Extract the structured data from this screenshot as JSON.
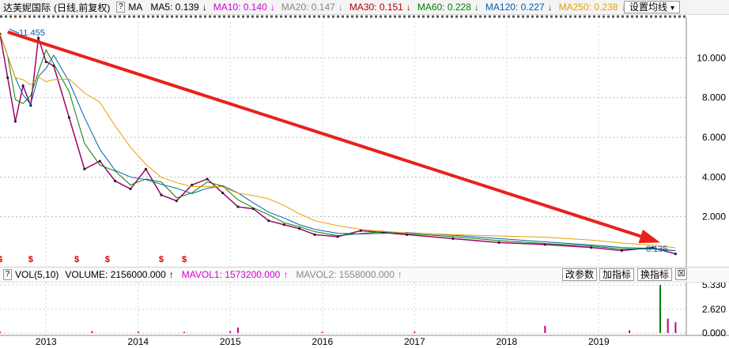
{
  "header": {
    "title": "达芙妮国际",
    "mode": "(日线,前复权)",
    "help": "?",
    "ma_label": "MA",
    "indicators": [
      {
        "text": "MA5: 0.139",
        "arrow": "↓",
        "color": "#000000"
      },
      {
        "text": "MA10: 0.140",
        "arrow": "↓",
        "color": "#d400d4"
      },
      {
        "text": "MA20: 0.147",
        "arrow": "↓",
        "color": "#888888"
      },
      {
        "text": "MA30: 0.151",
        "arrow": "↓",
        "color": "#b00000"
      },
      {
        "text": "MA60: 0.228",
        "arrow": "↓",
        "color": "#008000"
      },
      {
        "text": "MA120: 0.227",
        "arrow": "↓",
        "color": "#0060b0"
      },
      {
        "text": "MA250: 0.238",
        "arrow": "↓",
        "color": "#e8a000"
      }
    ],
    "settings_button": "设置均线"
  },
  "volume_bar": {
    "help": "?",
    "name": "VOL(5,10)",
    "volume": "VOLUME: 2156000.000",
    "mavol1": "MAVOL1: 1573200.000",
    "mavol2": "MAVOL2: 1558000.000",
    "arrow": "↑",
    "buttons": {
      "edit": "改参数",
      "add": "加指标",
      "switch": "换指标"
    },
    "close": "☒"
  },
  "chart_data": [
    {
      "type": "line",
      "title": "",
      "x": [
        "2012-07",
        "2012-08",
        "2012-09",
        "2012-10",
        "2012-11",
        "2012-12",
        "2013-01",
        "2013-02",
        "2013-04",
        "2013-06",
        "2013-08",
        "2013-10",
        "2013-12",
        "2014-02",
        "2014-04",
        "2014-06",
        "2014-08",
        "2014-10",
        "2014-12",
        "2015-02",
        "2015-04",
        "2015-06",
        "2015-08",
        "2015-10",
        "2015-12",
        "2016-03",
        "2016-06",
        "2016-09",
        "2016-12",
        "2017-06",
        "2017-12",
        "2018-06",
        "2018-12",
        "2019-04",
        "2019-08",
        "2019-11"
      ],
      "series": [
        {
          "name": "price",
          "values": [
            11.2,
            9.0,
            6.8,
            8.6,
            7.6,
            11.0,
            9.8,
            9.6,
            7.0,
            4.4,
            4.8,
            3.8,
            3.4,
            4.4,
            3.1,
            2.8,
            3.6,
            3.9,
            3.2,
            2.5,
            2.4,
            1.8,
            1.6,
            1.4,
            1.1,
            1.0,
            1.3,
            1.2,
            1.1,
            0.9,
            0.7,
            0.6,
            0.45,
            0.3,
            0.45,
            0.13
          ]
        }
      ],
      "trend_arrow": {
        "from": {
          "x": "2012-08",
          "y": 11.3
        },
        "to": {
          "x": "2019-09",
          "y": 0.7
        },
        "color": "#e8221b"
      },
      "high_label": "11.455",
      "low_label": "0.135",
      "ylim": [
        0,
        11.8
      ],
      "yticks": [
        "2.000",
        "4.000",
        "6.000",
        "8.000",
        "10.000"
      ],
      "xticks": [
        "2013",
        "2014",
        "2015",
        "2016",
        "2017",
        "2018",
        "2019"
      ],
      "dividend_marker": "$",
      "dividend_positions": [
        "2012-07",
        "2012-11",
        "2013-05",
        "2013-09",
        "2014-04",
        "2014-07"
      ],
      "grid": true
    },
    {
      "type": "bar",
      "title": "",
      "x": [
        "2012-07",
        "2013-07",
        "2014-01",
        "2014-07",
        "2015-01",
        "2015-02",
        "2016-01",
        "2017-01",
        "2018-06",
        "2019-05",
        "2019-09",
        "2019-10",
        "2019-11"
      ],
      "values": [
        0.15,
        0.2,
        0.15,
        0.12,
        0.2,
        0.6,
        0.12,
        0.15,
        0.8,
        0.3,
        5.33,
        1.6,
        1.2
      ],
      "ylim": [
        0,
        5.6
      ],
      "yticks": [
        "0.000",
        "2.620",
        "5.330"
      ],
      "grid": true
    }
  ]
}
